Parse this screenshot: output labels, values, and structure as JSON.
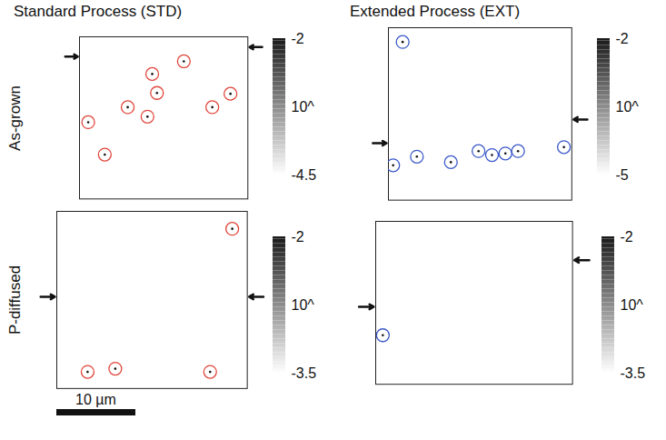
{
  "column_titles": [
    "Standard Process (STD)",
    "Extended Process (EXT)"
  ],
  "row_labels": [
    "As-grown",
    "P-diffused"
  ],
  "scale_bar": {
    "length": 10,
    "label": "10 µm"
  },
  "chart_data": [
    {
      "type": "scatter",
      "tick_labels": false,
      "marker": "circle",
      "color": "#e0453a",
      "xlim": [
        0,
        21.3
      ],
      "ylim": [
        0,
        20.5
      ],
      "x": [
        13.2,
        9.2,
        9.8,
        6.1,
        16.8,
        19.1,
        8.6,
        1.1,
        3.2
      ],
      "values": [
        3.1,
        4.7,
        7.1,
        8.9,
        8.9,
        7.2,
        10.1,
        10.8,
        14.9
      ],
      "arrows": {
        "left": 2.5,
        "right": 1.3
      },
      "colorbar": {
        "range": [
          -4.5,
          -2
        ],
        "ticks": [
          -4.5,
          -2
        ],
        "label": "10^"
      }
    },
    {
      "type": "scatter",
      "tick_labels": false,
      "marker": "circle",
      "color": "#3a58c8",
      "xlim": [
        0,
        23.2
      ],
      "ylim": [
        0,
        21.8
      ],
      "x": [
        1.8,
        0.6,
        3.6,
        7.9,
        11.4,
        13.1,
        14.8,
        16.4,
        22.2
      ],
      "values": [
        1.8,
        17.4,
        16.3,
        17.0,
        15.6,
        16.1,
        15.9,
        15.6,
        15.1
      ],
      "arrows": {
        "left": 14.6,
        "right": 11.6
      },
      "colorbar": {
        "range": [
          -5,
          -2
        ],
        "ticks": [
          -5,
          -2
        ],
        "label": "10^"
      }
    },
    {
      "type": "scatter",
      "tick_labels": false,
      "marker": "circle",
      "color": "#e0453a",
      "xlim": [
        0,
        24.1
      ],
      "ylim": [
        0,
        22.4
      ],
      "x": [
        22.2,
        3.9,
        7.4,
        19.4
      ],
      "values": [
        2.2,
        20.3,
        19.9,
        20.3
      ],
      "arrows": {
        "left": 10.8,
        "right": 10.8
      },
      "colorbar": {
        "range": [
          -3.5,
          -2
        ],
        "ticks": [
          -3.5,
          -2
        ],
        "label": "10^"
      }
    },
    {
      "type": "scatter",
      "tick_labels": false,
      "marker": "circle",
      "color": "#3a58c8",
      "xlim": [
        0,
        24.9
      ],
      "ylim": [
        0,
        20.6
      ],
      "x": [
        0.9
      ],
      "values": [
        14.4
      ],
      "arrows": {
        "left": 10.8,
        "right": 4.9
      },
      "colorbar": {
        "range": [
          -3.5,
          -2
        ],
        "ticks": [
          -3.5,
          -2
        ],
        "label": "10^"
      }
    }
  ]
}
